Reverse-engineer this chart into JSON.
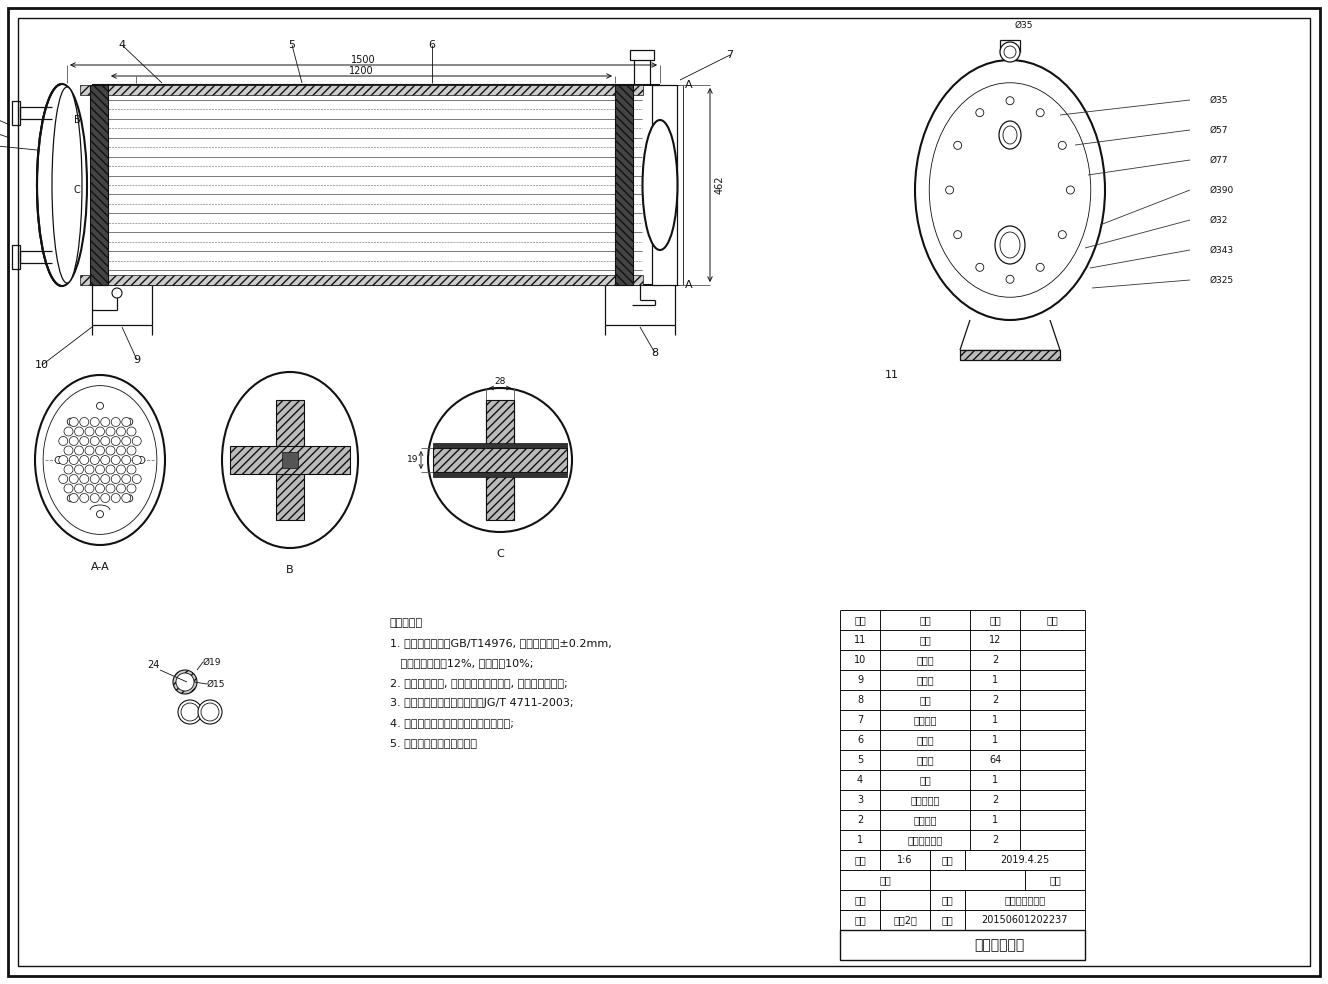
{
  "title": "蒸发器装配图",
  "table_rows": [
    [
      "11",
      "螺栓",
      "12",
      ""
    ],
    [
      "10",
      "密封圈",
      "2",
      ""
    ],
    [
      "9",
      "出液管",
      "1",
      ""
    ],
    [
      "8",
      "支架",
      "2",
      ""
    ],
    [
      "7",
      "右侧端盖",
      "1",
      ""
    ],
    [
      "6",
      "进气管",
      "1",
      ""
    ],
    [
      "5",
      "传热管",
      "64",
      ""
    ],
    [
      "4",
      "壳体",
      "1",
      ""
    ],
    [
      "3",
      "管板兼法兰",
      "2",
      ""
    ],
    [
      "2",
      "左侧端盖",
      "1",
      ""
    ],
    [
      "1",
      "冷却水管接口",
      "2",
      ""
    ]
  ],
  "table_headers": [
    "序号",
    "名称",
    "数量",
    "备注"
  ],
  "tech_notes": [
    "技术要求：",
    "1. 换热管的标准为GB/T14976, 其外径偏差为±0.2mm,",
    "   其厚壁正偏差为12%, 负偏差为10%;",
    "2. 设备制造完毕, 不锈钢部分清除油垢, 做酸洗钝化处理;",
    "3. 压力容器涂敷与运输包装按JG/T 4711-2003;",
    "4. 压力容器铭牌应固定在设备显著位置;",
    "5. 管口及支座方位按本图。"
  ],
  "ratio": "1:6",
  "date": "2019.4.25",
  "class": "能动2班",
  "student_id": "20150601202237",
  "major": "能源与动力工程"
}
